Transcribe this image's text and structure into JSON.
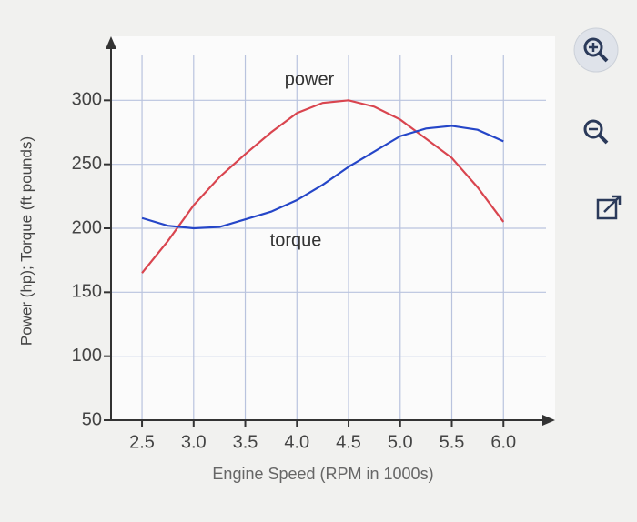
{
  "chart_data": {
    "type": "line",
    "x_label": "Engine Speed (RPM in 1000s)",
    "y_label": "Power (hp); Torque (ft pounds)",
    "annotations": [
      "power",
      "torque"
    ],
    "x": [
      2.5,
      2.75,
      3.0,
      3.25,
      3.5,
      3.75,
      4.0,
      4.25,
      4.5,
      4.75,
      5.0,
      5.25,
      5.5,
      5.75,
      6.0
    ],
    "series": [
      {
        "name": "power",
        "color": "#d9454f",
        "values": [
          165,
          190,
          218,
          240,
          258,
          275,
          290,
          298,
          300,
          295,
          285,
          270,
          255,
          232,
          205
        ]
      },
      {
        "name": "torque",
        "color": "#2546c8",
        "values": [
          208,
          202,
          200,
          201,
          207,
          213,
          222,
          234,
          248,
          260,
          272,
          278,
          280,
          277,
          268
        ]
      }
    ],
    "xlim": [
      2.2,
      6.5
    ],
    "ylim": [
      50,
      350
    ],
    "xticks": [
      2.5,
      {
        "value": 3,
        "label": "3.0"
      },
      3.5,
      {
        "value": 4,
        "label": "4.0"
      },
      4.5,
      {
        "value": 5,
        "label": "5.0"
      },
      5.5,
      {
        "value": 6,
        "label": "6.0"
      }
    ],
    "yticks": [
      50,
      100,
      150,
      200,
      250,
      300
    ],
    "grid": true
  }
}
